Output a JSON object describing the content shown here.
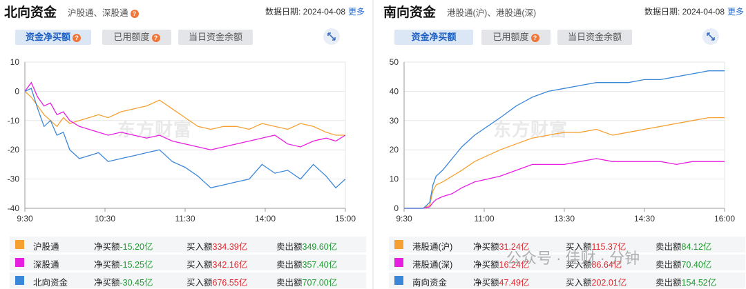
{
  "north": {
    "title": "北向资金",
    "subtitle": "沪股通、深股通",
    "date_label": "数据日期: 2024-04-08",
    "more": "更多",
    "tabs": [
      "资金净买额",
      "已用额度",
      "当日资金余额"
    ],
    "legend": [
      {
        "name": "沪股通",
        "net_label": "净买额",
        "net": "-15.20亿",
        "buy_label": "买入额",
        "buy": "334.39亿",
        "sell_label": "卖出额",
        "sell": "349.60亿",
        "color": "#f5a031"
      },
      {
        "name": "深股通",
        "net_label": "净买额",
        "net": "-15.25亿",
        "buy_label": "买入额",
        "buy": "342.16亿",
        "sell_label": "卖出额",
        "sell": "357.40亿",
        "color": "#e61ee0"
      },
      {
        "name": "北向资金",
        "net_label": "净买额",
        "net": "-30.45亿",
        "buy_label": "买入额",
        "buy": "676.55亿",
        "sell_label": "卖出额",
        "sell": "707.00亿",
        "color": "#3a86d8"
      }
    ]
  },
  "south": {
    "title": "南向资金",
    "subtitle": "港股通(沪)、港股通(深)",
    "date_label": "数据日期: 2024-04-08",
    "more": "更多",
    "tabs": [
      "资金净买额",
      "已用额度",
      "当日资金余额"
    ],
    "legend": [
      {
        "name": "港股通(沪)",
        "net_label": "净买额",
        "net": "31.24亿",
        "buy_label": "买入额",
        "buy": "115.37亿",
        "sell_label": "卖出额",
        "sell": "84.12亿",
        "color": "#f5a031"
      },
      {
        "name": "港股通(深)",
        "net_label": "净买额",
        "net": "16.24亿",
        "buy_label": "买入额",
        "buy": "86.64亿",
        "sell_label": "卖出额",
        "sell": "70.40亿",
        "color": "#e61ee0"
      },
      {
        "name": "南向资金",
        "net_label": "净买额",
        "net": "47.49亿",
        "buy_label": "买入额",
        "buy": "202.01亿",
        "sell_label": "卖出额",
        "sell": "154.52亿",
        "color": "#3a86d8"
      }
    ]
  },
  "watermark": "东方财富",
  "footer_watermark": "公众号 · 佳财 · 分钟",
  "chart_data": [
    {
      "type": "line",
      "ylim": [
        -40,
        10
      ],
      "yticks": [
        10,
        0,
        -10,
        -20,
        -30,
        -40
      ],
      "xticks": [
        "9:30",
        "10:30",
        "11:30",
        "14:00",
        "15:00"
      ],
      "grid": true,
      "series": [
        {
          "name": "沪股通",
          "color": "#f5a031",
          "x": [
            0,
            0.02,
            0.04,
            0.06,
            0.08,
            0.1,
            0.12,
            0.14,
            0.17,
            0.2,
            0.23,
            0.26,
            0.3,
            0.34,
            0.38,
            0.42,
            0.46,
            0.5,
            0.54,
            0.58,
            0.62,
            0.66,
            0.7,
            0.74,
            0.78,
            0.82,
            0.86,
            0.9,
            0.94,
            0.97,
            1.0
          ],
          "y": [
            0,
            -2,
            -5,
            -8,
            -10,
            -12,
            -9,
            -11,
            -10,
            -9,
            -8,
            -9,
            -7,
            -6,
            -5,
            -3,
            -6,
            -9,
            -12,
            -13,
            -12,
            -12,
            -13,
            -11,
            -12,
            -13,
            -11,
            -12,
            -14,
            -15,
            -15
          ]
        },
        {
          "name": "深股通",
          "color": "#e61ee0",
          "x": [
            0,
            0.02,
            0.04,
            0.06,
            0.08,
            0.1,
            0.12,
            0.14,
            0.17,
            0.2,
            0.23,
            0.26,
            0.3,
            0.34,
            0.38,
            0.42,
            0.46,
            0.5,
            0.54,
            0.58,
            0.62,
            0.66,
            0.7,
            0.74,
            0.78,
            0.82,
            0.86,
            0.9,
            0.94,
            0.97,
            1.0
          ],
          "y": [
            0,
            3,
            -2,
            -5,
            -4,
            -8,
            -7,
            -10,
            -12,
            -13,
            -14,
            -15,
            -14,
            -15,
            -16,
            -15,
            -17,
            -18,
            -19,
            -20,
            -19,
            -18,
            -17,
            -16,
            -15,
            -18,
            -19,
            -17,
            -16,
            -17,
            -15
          ]
        },
        {
          "name": "北向资金",
          "color": "#3a86d8",
          "x": [
            0,
            0.02,
            0.04,
            0.06,
            0.08,
            0.1,
            0.12,
            0.14,
            0.17,
            0.2,
            0.23,
            0.26,
            0.3,
            0.34,
            0.38,
            0.42,
            0.46,
            0.5,
            0.54,
            0.58,
            0.62,
            0.66,
            0.7,
            0.74,
            0.78,
            0.82,
            0.86,
            0.9,
            0.94,
            0.97,
            1.0
          ],
          "y": [
            0,
            1,
            -6,
            -12,
            -10,
            -15,
            -14,
            -20,
            -23,
            -22,
            -21,
            -24,
            -23,
            -22,
            -21,
            -20,
            -24,
            -26,
            -29,
            -33,
            -32,
            -31,
            -30,
            -25,
            -28,
            -27,
            -30,
            -25,
            -29,
            -33,
            -30
          ]
        }
      ]
    },
    {
      "type": "line",
      "ylim": [
        0,
        50
      ],
      "yticks": [
        50,
        40,
        30,
        20,
        10,
        0
      ],
      "xticks": [
        "9:30",
        "11:00",
        "13:30",
        "14:30",
        "16:00"
      ],
      "grid": true,
      "series": [
        {
          "name": "港股通(沪)",
          "color": "#f5a031",
          "x": [
            0,
            0.06,
            0.08,
            0.09,
            0.1,
            0.12,
            0.15,
            0.18,
            0.22,
            0.26,
            0.3,
            0.35,
            0.4,
            0.45,
            0.5,
            0.55,
            0.6,
            0.65,
            0.7,
            0.75,
            0.8,
            0.85,
            0.9,
            0.95,
            1.0
          ],
          "y": [
            0,
            0,
            1,
            6,
            8,
            9,
            11,
            13,
            16,
            18,
            20,
            22,
            24,
            25,
            26,
            26,
            27,
            25,
            26,
            27,
            28,
            29,
            30,
            31,
            31
          ]
        },
        {
          "name": "港股通(深)",
          "color": "#e61ee0",
          "x": [
            0,
            0.06,
            0.08,
            0.09,
            0.1,
            0.12,
            0.15,
            0.18,
            0.22,
            0.26,
            0.3,
            0.35,
            0.4,
            0.45,
            0.5,
            0.55,
            0.6,
            0.65,
            0.7,
            0.75,
            0.8,
            0.85,
            0.9,
            0.95,
            1.0
          ],
          "y": [
            0,
            0,
            0.5,
            2,
            3,
            4,
            5,
            7,
            9,
            10,
            11,
            13,
            15,
            15,
            15,
            16,
            17,
            16,
            16,
            16,
            16,
            15,
            16,
            16,
            16
          ]
        },
        {
          "name": "南向资金",
          "color": "#3a86d8",
          "x": [
            0,
            0.06,
            0.08,
            0.09,
            0.1,
            0.12,
            0.15,
            0.18,
            0.22,
            0.26,
            0.3,
            0.35,
            0.4,
            0.45,
            0.5,
            0.55,
            0.6,
            0.65,
            0.7,
            0.75,
            0.8,
            0.85,
            0.9,
            0.95,
            1.0
          ],
          "y": [
            0,
            0,
            2,
            8,
            11,
            13,
            17,
            21,
            25,
            28,
            31,
            35,
            38,
            40,
            41,
            42,
            43,
            43,
            43,
            44,
            44,
            45,
            46,
            47,
            47
          ]
        }
      ]
    }
  ]
}
